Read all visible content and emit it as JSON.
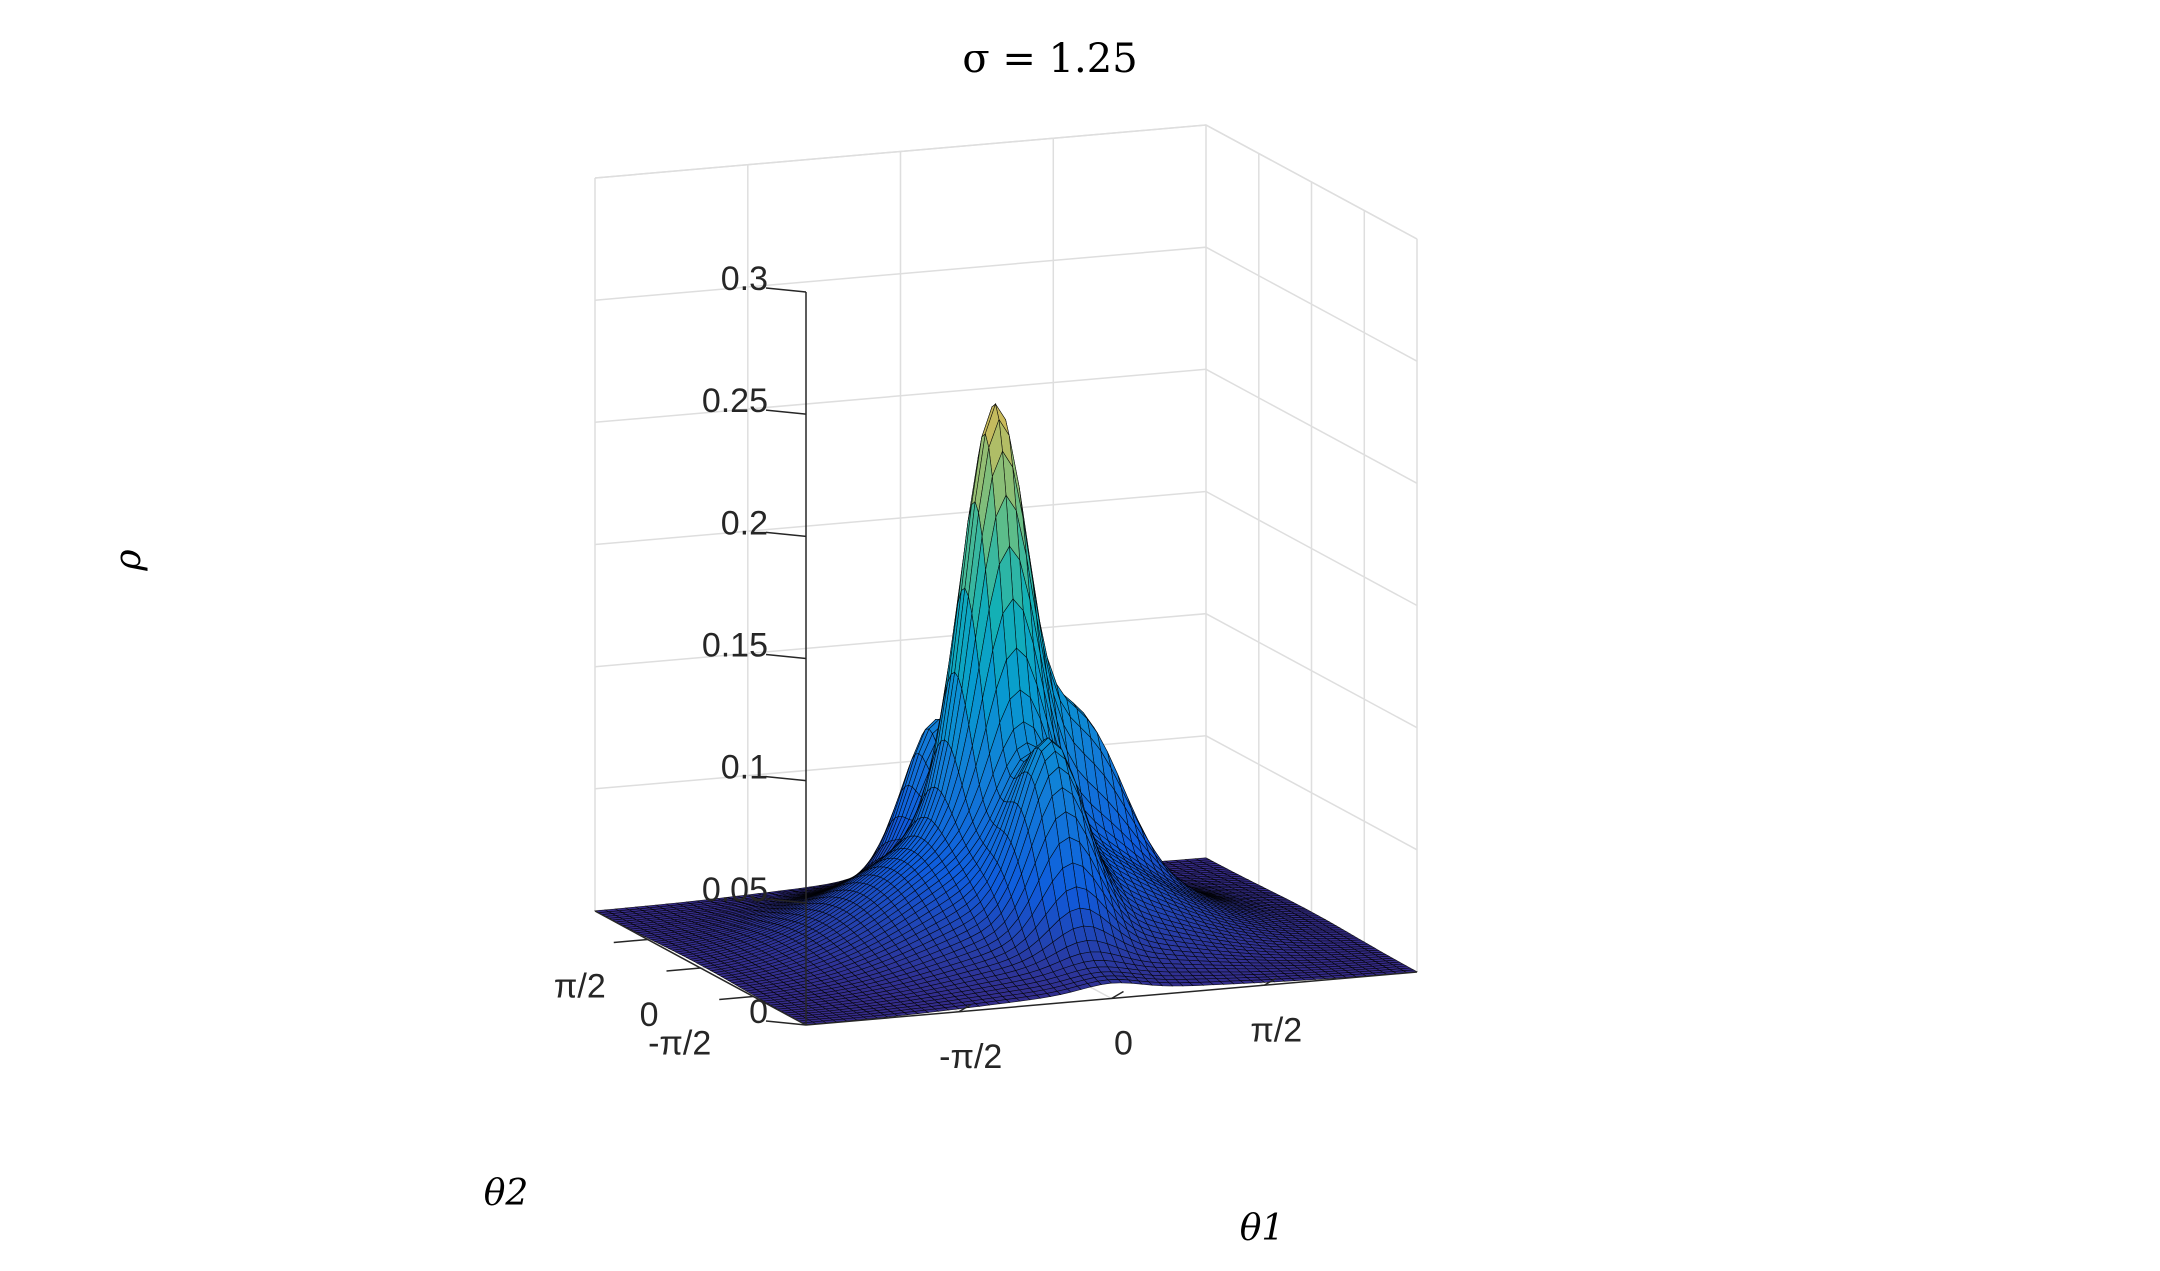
{
  "chart_data": {
    "type": "surface",
    "title": "σ = 1.25",
    "xlabel": "θ1",
    "ylabel": "θ2",
    "zlabel": "ρ",
    "xlim": [
      -3.1416,
      3.1416
    ],
    "ylim": [
      -3.1416,
      3.1416
    ],
    "zlim": [
      0,
      0.3
    ],
    "x_ticks": [
      {
        "value": -1.5708,
        "label": "-π/2"
      },
      {
        "value": 0,
        "label": "0"
      },
      {
        "value": 1.5708,
        "label": "π/2"
      }
    ],
    "y_ticks": [
      {
        "value": -1.5708,
        "label": "-π/2"
      },
      {
        "value": 0,
        "label": "0"
      },
      {
        "value": 1.5708,
        "label": "π/2"
      }
    ],
    "z_ticks": [
      {
        "value": 0,
        "label": "0"
      },
      {
        "value": 0.05,
        "label": "0.05"
      },
      {
        "value": 0.1,
        "label": "0.1"
      },
      {
        "value": 0.15,
        "label": "0.15"
      },
      {
        "value": 0.2,
        "label": "0.2"
      },
      {
        "value": 0.25,
        "label": "0.25"
      },
      {
        "value": 0.3,
        "label": "0.3"
      }
    ],
    "grid": true,
    "colormap": "parula",
    "edge_color": "#000000",
    "peak_value": 0.24
  }
}
